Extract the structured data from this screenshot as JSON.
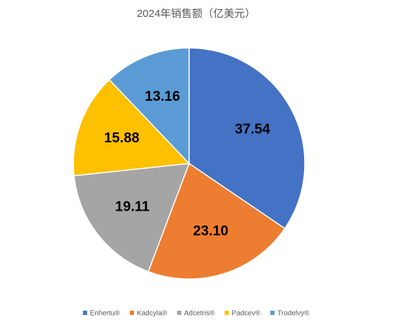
{
  "chart_data": {
    "type": "pie",
    "title": "2024年销售额（亿美元）",
    "categories": [
      "Enhertu®",
      "Kadcyla®",
      "Adcetris®",
      "Padcev®",
      "Trodelvy®"
    ],
    "values": [
      37.54,
      23.1,
      19.11,
      15.88,
      13.16
    ],
    "value_labels": [
      "37.54",
      "23.10",
      "19.11",
      "15.88",
      "13.16"
    ],
    "colors": [
      "#4472c4",
      "#ed7d31",
      "#a5a5a5",
      "#ffc000",
      "#5b9bd5"
    ],
    "legend": "bottom"
  }
}
